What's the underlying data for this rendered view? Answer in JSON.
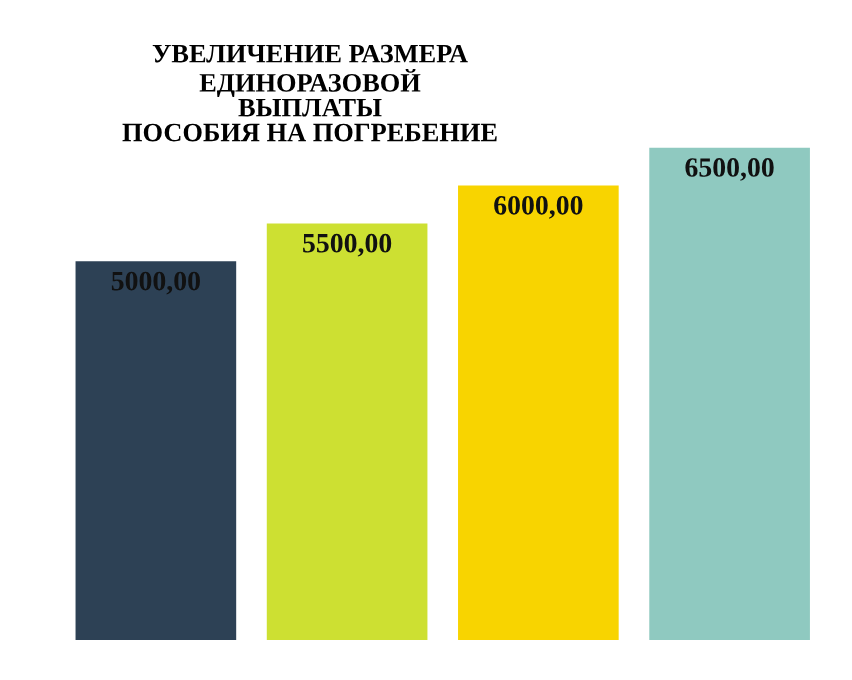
{
  "chart_data": {
    "type": "bar",
    "title": "УВЕЛИЧЕНИЕ РАЗМЕРА\nЕДИНОРАЗОВОЙ\nВЫПЛАТЫ\nПОСОБИЯ НА ПОГРЕБЕНИЕ",
    "categories": [
      null,
      null,
      null,
      null
    ],
    "values": [
      5000,
      5500,
      6000,
      6500
    ],
    "colors": [
      "#2d4155",
      "#cde032",
      "#f8d400",
      "#8fc9c0"
    ],
    "value_labels": [
      "5000,00",
      "5500,00",
      "6000,00",
      "6500,00"
    ],
    "grid": false
  }
}
